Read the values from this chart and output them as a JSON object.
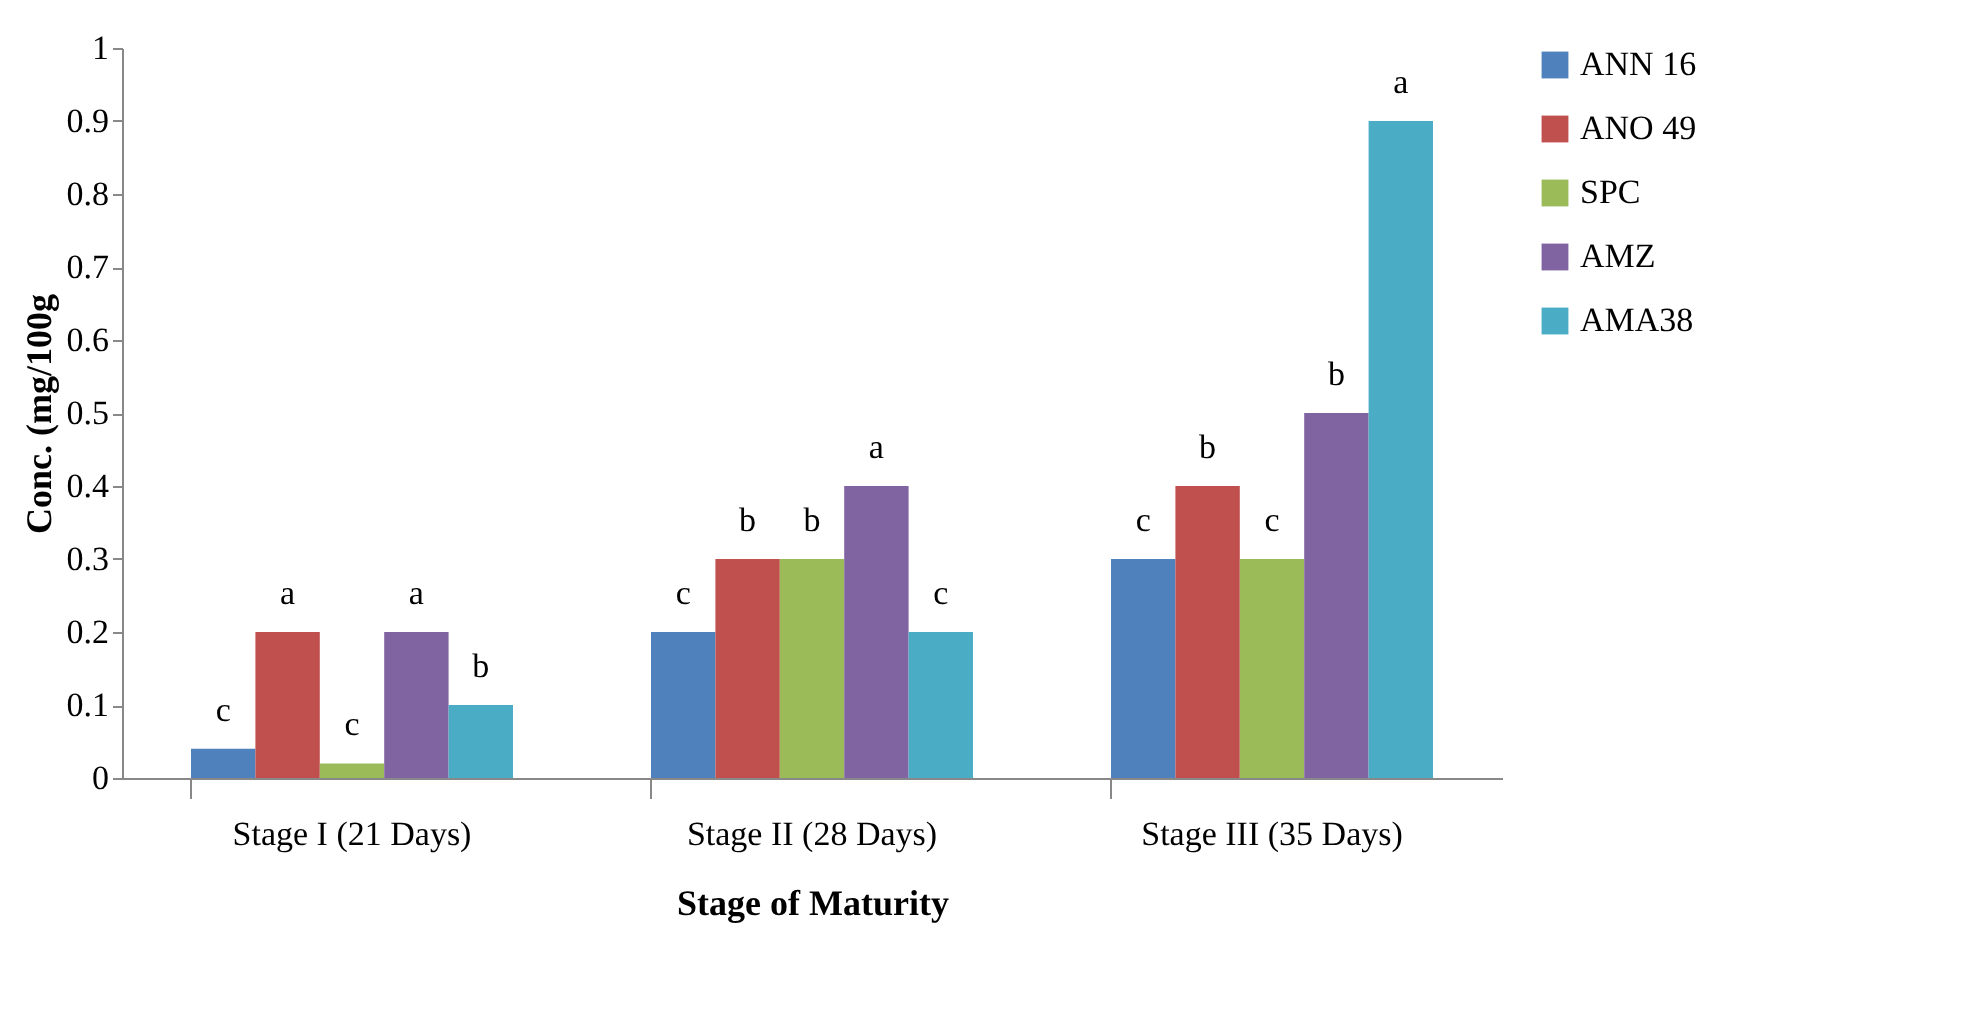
{
  "chart_data": {
    "type": "bar",
    "xlabel": "Stage of Maturity",
    "ylabel": "Conc. (mg/100g",
    "categories": [
      "Stage I (21 Days)",
      "Stage II (28 Days)",
      "Stage III (35 Days)"
    ],
    "series": [
      {
        "name": "ANN 16",
        "color": "#4f81bd",
        "values": [
          0.04,
          0.2,
          0.3
        ],
        "value_labels": [
          "c",
          "c",
          "c"
        ]
      },
      {
        "name": "ANO 49",
        "color": "#c0504d",
        "values": [
          0.2,
          0.3,
          0.4
        ],
        "value_labels": [
          "a",
          "b",
          "b"
        ]
      },
      {
        "name": "SPC",
        "color": "#9bbb59",
        "values": [
          0.02,
          0.3,
          0.3
        ],
        "value_labels": [
          "c",
          "b",
          "c"
        ]
      },
      {
        "name": "AMZ",
        "color": "#8064a2",
        "values": [
          0.2,
          0.4,
          0.5
        ],
        "value_labels": [
          "a",
          "a",
          "b"
        ]
      },
      {
        "name": "AMA38",
        "color": "#4bacc6",
        "values": [
          0.1,
          0.2,
          0.9
        ],
        "value_labels": [
          "b",
          "c",
          "a"
        ]
      }
    ],
    "ylim": [
      0,
      1
    ],
    "yticks": [
      0,
      0.1,
      0.2,
      0.3,
      0.4,
      0.5,
      0.6,
      0.7,
      0.8,
      0.9,
      1
    ],
    "grid": false,
    "legend": "right"
  }
}
